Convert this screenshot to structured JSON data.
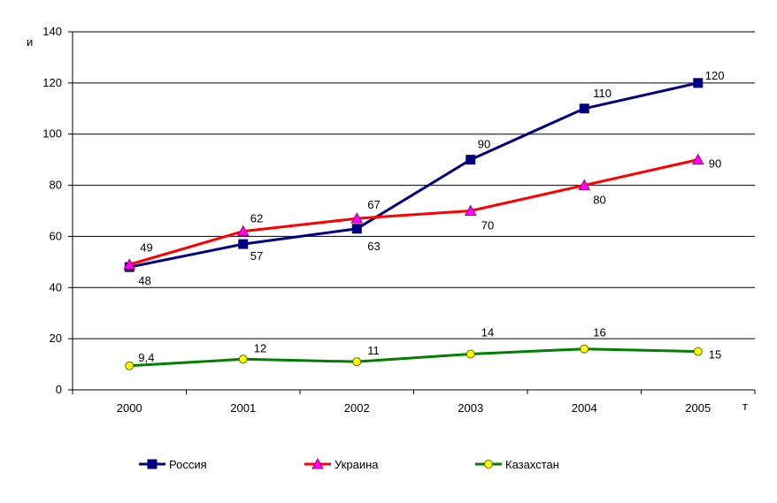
{
  "chart_data": {
    "type": "line",
    "xlabel": "т",
    "ylabel": "и",
    "ylim": [
      0,
      140
    ],
    "yticks": [
      0,
      20,
      40,
      60,
      80,
      100,
      120,
      140
    ],
    "categories": [
      "2000",
      "2001",
      "2002",
      "2003",
      "2004",
      "2005"
    ],
    "grid": true,
    "legend": "bottom",
    "series": [
      {
        "name": "Россия",
        "color": "#000080",
        "marker": "square",
        "marker_color": "#000080",
        "values": [
          48,
          57,
          63,
          90,
          110,
          120
        ],
        "labels": [
          "48",
          "57",
          "63",
          "90",
          "110",
          "120"
        ]
      },
      {
        "name": "Украина",
        "color": "#ff0000",
        "marker": "triangle",
        "marker_color": "#ff00ff",
        "values": [
          49,
          62,
          67,
          70,
          80,
          90
        ],
        "labels": [
          "49",
          "62",
          "67",
          "70",
          "80",
          "90"
        ]
      },
      {
        "name": "Казахстан",
        "color": "#008000",
        "marker": "circle",
        "marker_color": "#ffff00",
        "values": [
          9.4,
          12,
          11,
          14,
          16,
          15
        ],
        "labels": [
          "9,4",
          "12",
          "11",
          "14",
          "16",
          "15"
        ]
      }
    ]
  }
}
